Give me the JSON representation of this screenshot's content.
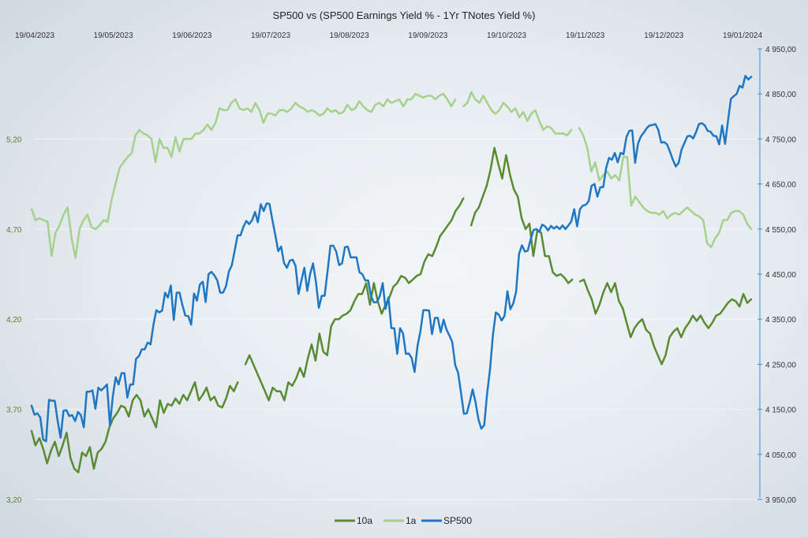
{
  "chart_data": {
    "type": "line",
    "title": "SP500 vs (SP500 Earnings Yield % - 1Yr TNotes Yield %)",
    "x_tick_labels": [
      "19/04/2023",
      "19/05/2023",
      "19/06/2023",
      "19/07/2023",
      "19/08/2023",
      "19/09/2023",
      "19/10/2023",
      "19/11/2023",
      "19/12/2023",
      "19/01/2024"
    ],
    "y_left": {
      "ticks": [
        "3,20",
        "3,70",
        "4,20",
        "4,70",
        "5,20"
      ],
      "tick_values": [
        3.2,
        3.7,
        4.2,
        4.7,
        5.2
      ],
      "range": [
        3.2,
        5.7
      ]
    },
    "y_right": {
      "ticks": [
        "3 950,00",
        "4 050,00",
        "4 150,00",
        "4 250,00",
        "4 350,00",
        "4 450,00",
        "4 550,00",
        "4 650,00",
        "4 750,00",
        "4 850,00",
        "4 950,00"
      ],
      "tick_values": [
        3950,
        4050,
        4150,
        4250,
        4350,
        4450,
        4550,
        4650,
        4750,
        4850,
        4950
      ],
      "range": [
        3950,
        4950
      ]
    },
    "x_range": [
      -1,
      139
    ],
    "legend_position": "bottom",
    "colors": {
      "s10a": "#5a8a32",
      "s1a": "#a6d18c",
      "sp500": "#1f77c4"
    },
    "series": [
      {
        "name": "10a",
        "axis": "left",
        "values": [
          3.58,
          3.5,
          3.54,
          3.48,
          3.4,
          3.47,
          3.52,
          3.44,
          3.5,
          3.57,
          3.43,
          3.37,
          3.35,
          3.46,
          3.44,
          3.49,
          3.37,
          3.46,
          3.48,
          3.52,
          3.6,
          3.65,
          3.68,
          3.72,
          3.71,
          3.66,
          3.75,
          3.78,
          3.75,
          3.66,
          3.7,
          3.65,
          3.6,
          3.75,
          3.68,
          3.73,
          3.72,
          3.76,
          3.73,
          3.78,
          3.75,
          3.8,
          3.85,
          3.75,
          3.78,
          3.82,
          3.75,
          3.77,
          3.72,
          3.71,
          3.76,
          3.83,
          3.8,
          3.85,
          null,
          3.95,
          4.0,
          3.95,
          3.9,
          3.85,
          3.8,
          3.75,
          3.82,
          3.8,
          3.8,
          3.75,
          3.85,
          3.83,
          3.87,
          3.93,
          3.88,
          3.98,
          4.06,
          3.97,
          4.12,
          4.02,
          4.0,
          4.16,
          4.2,
          4.2,
          4.22,
          4.23,
          4.25,
          4.3,
          4.34,
          4.34,
          4.4,
          4.28,
          4.4,
          4.3,
          4.23,
          4.28,
          4.32,
          4.38,
          4.4,
          4.44,
          4.43,
          4.4,
          4.42,
          4.44,
          4.45,
          4.52,
          4.56,
          4.55,
          4.6,
          4.66,
          4.69,
          4.72,
          4.75,
          4.8,
          4.83,
          4.87,
          null,
          4.72,
          4.79,
          4.82,
          4.88,
          4.94,
          5.03,
          5.15,
          5.06,
          4.98,
          5.11,
          5.0,
          4.92,
          4.88,
          4.76,
          4.7,
          4.73,
          4.55,
          4.69,
          4.68,
          4.55,
          4.55,
          4.46,
          4.44,
          4.45,
          4.43,
          4.4,
          4.42,
          null,
          4.41,
          4.42,
          4.36,
          4.31,
          4.23,
          4.28,
          4.35,
          4.4,
          4.35,
          4.4,
          4.3,
          4.26,
          4.18,
          4.1,
          4.15,
          4.18,
          4.2,
          4.14,
          4.12,
          4.05,
          4.0,
          3.95,
          4.0,
          4.1,
          4.13,
          4.15,
          4.1,
          4.15,
          4.18,
          4.22,
          4.19,
          4.22,
          4.18,
          4.15,
          4.18,
          4.22,
          4.23,
          4.26,
          4.29,
          4.31,
          4.3,
          4.27,
          4.34,
          4.29,
          4.31
        ]
      },
      {
        "name": "1a",
        "axis": "left",
        "values": [
          4.81,
          4.75,
          4.76,
          4.75,
          4.74,
          4.55,
          4.68,
          4.72,
          4.78,
          4.82,
          4.65,
          4.54,
          4.7,
          4.75,
          4.78,
          4.71,
          4.7,
          4.72,
          4.75,
          4.74,
          4.86,
          4.95,
          5.04,
          5.07,
          5.1,
          5.12,
          5.22,
          5.25,
          5.23,
          5.22,
          5.2,
          5.07,
          5.2,
          5.15,
          5.15,
          5.1,
          5.21,
          5.13,
          5.2,
          5.2,
          5.2,
          5.23,
          5.23,
          5.25,
          5.28,
          5.25,
          5.29,
          5.37,
          5.36,
          5.36,
          5.4,
          5.42,
          5.37,
          5.36,
          5.37,
          5.35,
          5.4,
          5.36,
          5.29,
          5.34,
          5.34,
          5.33,
          5.36,
          5.36,
          5.35,
          5.37,
          5.4,
          5.38,
          5.37,
          5.35,
          5.36,
          5.35,
          5.33,
          5.34,
          5.37,
          5.35,
          5.36,
          5.34,
          5.35,
          5.39,
          5.36,
          5.37,
          5.41,
          5.38,
          5.36,
          5.35,
          5.39,
          5.4,
          5.38,
          5.42,
          5.4,
          5.41,
          5.42,
          5.38,
          5.42,
          5.42,
          5.45,
          5.44,
          5.43,
          5.44,
          5.44,
          5.42,
          5.44,
          5.45,
          5.42,
          5.38,
          5.42,
          null,
          5.38,
          5.4,
          5.46,
          5.42,
          5.4,
          5.44,
          5.4,
          5.36,
          5.34,
          5.36,
          5.4,
          5.38,
          5.35,
          5.37,
          5.32,
          5.35,
          5.3,
          5.34,
          5.36,
          5.3,
          5.25,
          5.27,
          5.26,
          5.23,
          5.23,
          5.23,
          5.22,
          5.25,
          null,
          5.26,
          5.22,
          5.15,
          5.02,
          5.07,
          4.97,
          5.0,
          5.02,
          4.98,
          5.0,
          4.97,
          5.1,
          5.1,
          4.83,
          4.88,
          4.85,
          4.82,
          4.8,
          4.79,
          4.79,
          4.78,
          4.8,
          4.76,
          4.78,
          4.79,
          4.78,
          4.8,
          4.82,
          4.8,
          4.78,
          4.77,
          4.75,
          4.62,
          4.6,
          4.65,
          4.68,
          4.75,
          4.75,
          4.79,
          4.8,
          4.8,
          4.78,
          4.73,
          4.7
        ]
      },
      {
        "name": "SP500",
        "axis": "right",
        "values": [
          4158,
          4138,
          4141,
          4132,
          4083,
          4079,
          4171,
          4169,
          4169,
          4124,
          4087,
          4147,
          4148,
          4135,
          4137,
          4124,
          4144,
          4137,
          4110,
          4189,
          4189,
          4192,
          4151,
          4198,
          4192,
          4198,
          4205,
          4115,
          4179,
          4221,
          4205,
          4230,
          4230,
          4176,
          4205,
          4205,
          4262,
          4268,
          4283,
          4283,
          4298,
          4294,
          4338,
          4370,
          4365,
          4369,
          4409,
          4398,
          4425,
          4348,
          4409,
          4409,
          4381,
          4358,
          4357,
          4338,
          4407,
          4391,
          4427,
          4433,
          4388,
          4450,
          4455,
          4447,
          4436,
          4409,
          4409,
          4423,
          4456,
          4469,
          4502,
          4536,
          4536,
          4555,
          4568,
          4561,
          4570,
          4588,
          4565,
          4605,
          4590,
          4607,
          4606,
          4570,
          4537,
          4501,
          4511,
          4475,
          4464,
          4480,
          4482,
          4468,
          4406,
          4436,
          4464,
          4413,
          4450,
          4474,
          4433,
          4375,
          4402,
          4402,
          4456,
          4513,
          4513,
          4500,
          4470,
          4474,
          4510,
          4511,
          4487,
          4487,
          4487,
          4454,
          4450,
          4436,
          4436,
          4400,
          4387,
          4388,
          4401,
          4430,
          4373,
          4398,
          4330,
          4330,
          4273,
          4330,
          4319,
          4273,
          4274,
          4264,
          4233,
          4290,
          4323,
          4370,
          4370,
          4369,
          4317,
          4353,
          4353,
          4321,
          4349,
          4327,
          4314,
          4299,
          4248,
          4231,
          4186,
          4140,
          4141,
          4166,
          4194,
          4166,
          4128,
          4107,
          4115,
          4186,
          4238,
          4315,
          4365,
          4360,
          4347,
          4357,
          4412,
          4372,
          4385,
          4411,
          4495,
          4514,
          4500,
          4502,
          4527,
          4548,
          4550,
          4544,
          4560,
          4556,
          4547,
          4557,
          4551,
          4556,
          4550,
          4558,
          4550,
          4558,
          4567,
          4594,
          4556,
          4594,
          4602,
          4604,
          4612,
          4646,
          4650,
          4622,
          4643,
          4643,
          4685,
          4708,
          4704,
          4719,
          4698,
          4719,
          4716,
          4754,
          4768,
          4769,
          4697,
          4740,
          4756,
          4764,
          4774,
          4780,
          4781,
          4783,
          4770,
          4742,
          4743,
          4738,
          4722,
          4704,
          4689,
          4697,
          4726,
          4741,
          4756,
          4757,
          4751,
          4765,
          4783,
          4785,
          4780,
          4768,
          4766,
          4757,
          4756,
          4738,
          4780,
          4739,
          4790,
          4839,
          4845,
          4850,
          4868,
          4864,
          4890,
          4882,
          4888
        ]
      }
    ]
  }
}
